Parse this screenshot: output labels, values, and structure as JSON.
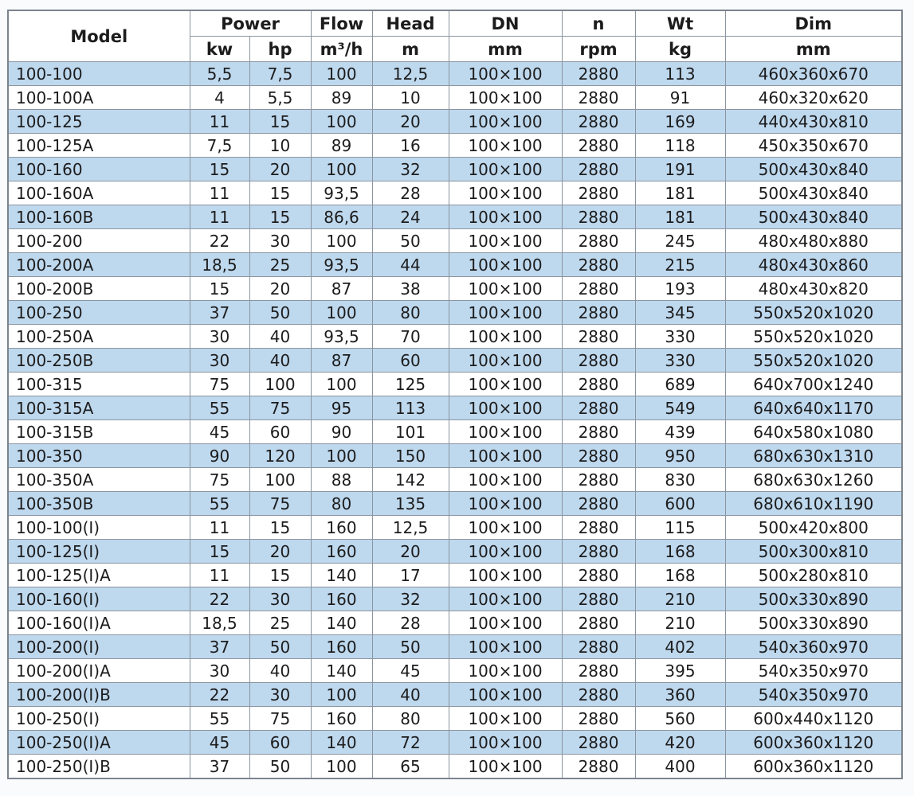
{
  "page": {
    "background": "#fafbfc"
  },
  "table": {
    "title": "pump-specifications-table",
    "header": {
      "model": "Model",
      "power": "Power",
      "power_kw": "kw",
      "power_hp": "hp",
      "flow": "Flow",
      "flow_unit": "m³/h",
      "head": "Head",
      "head_unit": "m",
      "dn": "DN",
      "dn_unit": "mm",
      "n": "n",
      "n_unit": "rpm",
      "wt": "Wt",
      "wt_unit": "kg",
      "dim": "Dim",
      "dim_unit": "mm"
    },
    "column_keys": [
      "model",
      "kw",
      "hp",
      "flow",
      "head",
      "dn",
      "n",
      "wt",
      "dim"
    ],
    "rows": [
      [
        "100-100",
        "5,5",
        "7,5",
        "100",
        "12,5",
        "100×100",
        "2880",
        "113",
        "460x360x670"
      ],
      [
        "100-100A",
        "4",
        "5,5",
        "89",
        "10",
        "100×100",
        "2880",
        "91",
        "460x320x620"
      ],
      [
        "100-125",
        "11",
        "15",
        "100",
        "20",
        "100×100",
        "2880",
        "169",
        "440x430x810"
      ],
      [
        "100-125A",
        "7,5",
        "10",
        "89",
        "16",
        "100×100",
        "2880",
        "118",
        "450x350x670"
      ],
      [
        "100-160",
        "15",
        "20",
        "100",
        "32",
        "100×100",
        "2880",
        "191",
        "500x430x840"
      ],
      [
        "100-160A",
        "11",
        "15",
        "93,5",
        "28",
        "100×100",
        "2880",
        "181",
        "500x430x840"
      ],
      [
        "100-160B",
        "11",
        "15",
        "86,6",
        "24",
        "100×100",
        "2880",
        "181",
        "500x430x840"
      ],
      [
        "100-200",
        "22",
        "30",
        "100",
        "50",
        "100×100",
        "2880",
        "245",
        "480x480x880"
      ],
      [
        "100-200A",
        "18,5",
        "25",
        "93,5",
        "44",
        "100×100",
        "2880",
        "215",
        "480x430x860"
      ],
      [
        "100-200B",
        "15",
        "20",
        "87",
        "38",
        "100×100",
        "2880",
        "193",
        "480x430x820"
      ],
      [
        "100-250",
        "37",
        "50",
        "100",
        "80",
        "100×100",
        "2880",
        "345",
        "550x520x1020"
      ],
      [
        "100-250A",
        "30",
        "40",
        "93,5",
        "70",
        "100×100",
        "2880",
        "330",
        "550x520x1020"
      ],
      [
        "100-250B",
        "30",
        "40",
        "87",
        "60",
        "100×100",
        "2880",
        "330",
        "550x520x1020"
      ],
      [
        "100-315",
        "75",
        "100",
        "100",
        "125",
        "100×100",
        "2880",
        "689",
        "640x700x1240"
      ],
      [
        "100-315A",
        "55",
        "75",
        "95",
        "113",
        "100×100",
        "2880",
        "549",
        "640x640x1170"
      ],
      [
        "100-315B",
        "45",
        "60",
        "90",
        "101",
        "100×100",
        "2880",
        "439",
        "640x580x1080"
      ],
      [
        "100-350",
        "90",
        "120",
        "100",
        "150",
        "100×100",
        "2880",
        "950",
        "680x630x1310"
      ],
      [
        "100-350A",
        "75",
        "100",
        "88",
        "142",
        "100×100",
        "2880",
        "830",
        "680x630x1260"
      ],
      [
        "100-350B",
        "55",
        "75",
        "80",
        "135",
        "100×100",
        "2880",
        "600",
        "680x610x1190"
      ],
      [
        "100-100(I)",
        "11",
        "15",
        "160",
        "12,5",
        "100×100",
        "2880",
        "115",
        "500x420x800"
      ],
      [
        "100-125(I)",
        "15",
        "20",
        "160",
        "20",
        "100×100",
        "2880",
        "168",
        "500x300x810"
      ],
      [
        "100-125(I)A",
        "11",
        "15",
        "140",
        "17",
        "100×100",
        "2880",
        "168",
        "500x280x810"
      ],
      [
        "100-160(I)",
        "22",
        "30",
        "160",
        "32",
        "100×100",
        "2880",
        "210",
        "500x330x890"
      ],
      [
        "100-160(I)A",
        "18,5",
        "25",
        "140",
        "28",
        "100×100",
        "2880",
        "210",
        "500x330x890"
      ],
      [
        "100-200(I)",
        "37",
        "50",
        "160",
        "50",
        "100×100",
        "2880",
        "402",
        "540x360x970"
      ],
      [
        "100-200(I)A",
        "30",
        "40",
        "140",
        "45",
        "100×100",
        "2880",
        "395",
        "540x350x970"
      ],
      [
        "100-200(I)B",
        "22",
        "30",
        "100",
        "40",
        "100×100",
        "2880",
        "360",
        "540x350x970"
      ],
      [
        "100-250(I)",
        "55",
        "75",
        "160",
        "80",
        "100×100",
        "2880",
        "560",
        "600x440x1120"
      ],
      [
        "100-250(I)A",
        "45",
        "60",
        "140",
        "72",
        "100×100",
        "2880",
        "420",
        "600x360x1120"
      ],
      [
        "100-250(I)B",
        "37",
        "50",
        "100",
        "65",
        "100×100",
        "2880",
        "400",
        "600x360x1120"
      ]
    ],
    "colors": {
      "alt_row": "#bed8ee",
      "row": "#ffffff",
      "border": "#8b959f",
      "outer_border": "#7b848d",
      "text": "#1c1c1c"
    },
    "shading_note": "odd data rows (1st, 3rd, ...) are shaded light blue"
  }
}
